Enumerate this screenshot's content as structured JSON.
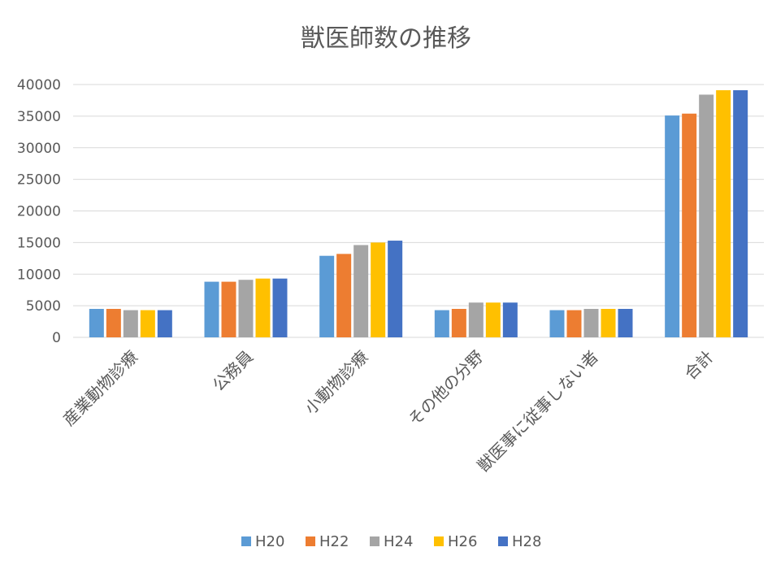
{
  "chart_data": {
    "type": "bar",
    "title": "獣医師数の推移",
    "xlabel": "",
    "ylabel": "",
    "ylim": [
      0,
      40000
    ],
    "yticks": [
      0,
      5000,
      10000,
      15000,
      20000,
      25000,
      30000,
      35000,
      40000
    ],
    "grid": true,
    "legend_position": "bottom",
    "categories": [
      "産業動物診療",
      "公務員",
      "小動物診療",
      "その他の分野",
      "獣医事に従事しない者",
      "合計"
    ],
    "series": [
      {
        "name": "H20",
        "color": "#5b9bd5",
        "values": [
          4500,
          8800,
          12900,
          4300,
          4300,
          35100
        ]
      },
      {
        "name": "H22",
        "color": "#ed7d31",
        "values": [
          4500,
          8800,
          13200,
          4500,
          4300,
          35400
        ]
      },
      {
        "name": "H24",
        "color": "#a5a5a5",
        "values": [
          4300,
          9100,
          14600,
          5500,
          4500,
          38400
        ]
      },
      {
        "name": "H26",
        "color": "#ffc000",
        "values": [
          4300,
          9300,
          15000,
          5500,
          4500,
          39100
        ]
      },
      {
        "name": "H28",
        "color": "#4472c4",
        "values": [
          4300,
          9300,
          15300,
          5500,
          4500,
          39100
        ]
      }
    ]
  }
}
